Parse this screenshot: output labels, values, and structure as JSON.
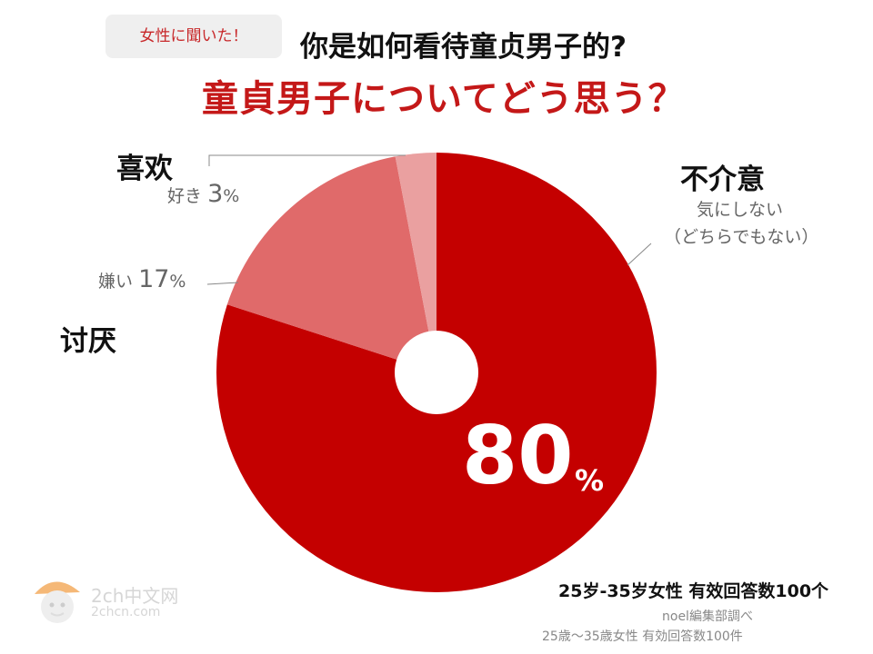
{
  "header": {
    "badge": "女性に聞いた！",
    "title_zh": "你是如何看待童贞男子的?",
    "title_jp": "童貞男子についてどう思う？"
  },
  "labels": {
    "indifferent_zh": "不介意",
    "indifferent_jp_line1": "気にしない",
    "indifferent_jp_line2": "（どちらでもない）",
    "like_zh": "喜欢",
    "like_jp": "好き",
    "like_pct": "3",
    "dislike_zh": "讨厌",
    "dislike_jp": "嫌い",
    "dislike_pct": "17",
    "big_value": "80",
    "percent_sign": "%"
  },
  "footer": {
    "summary_zh": "25岁-35岁女性 有效回答数100个",
    "credit": "noel編集部調べ",
    "note_jp": "25歳〜35歳女性 有効回答数100件"
  },
  "watermark": {
    "line1": "2ch中文网",
    "line2": "2chcn.com"
  },
  "colors": {
    "indifferent": "#c40000",
    "dislike": "#e06a6a",
    "like": "#eaa0a0",
    "title_red": "#c41818"
  },
  "chart_data": {
    "type": "pie",
    "variant": "donut",
    "title": "童貞男子についてどう思う？",
    "slices": [
      {
        "name": "気にしない（どちらでもない）",
        "value": 80,
        "color": "#c40000"
      },
      {
        "name": "嫌い",
        "value": 17,
        "color": "#e06a6a"
      },
      {
        "name": "好き",
        "value": 3,
        "color": "#eaa0a0"
      }
    ],
    "start": "12 o'clock",
    "direction": "clockwise",
    "units": "%"
  }
}
